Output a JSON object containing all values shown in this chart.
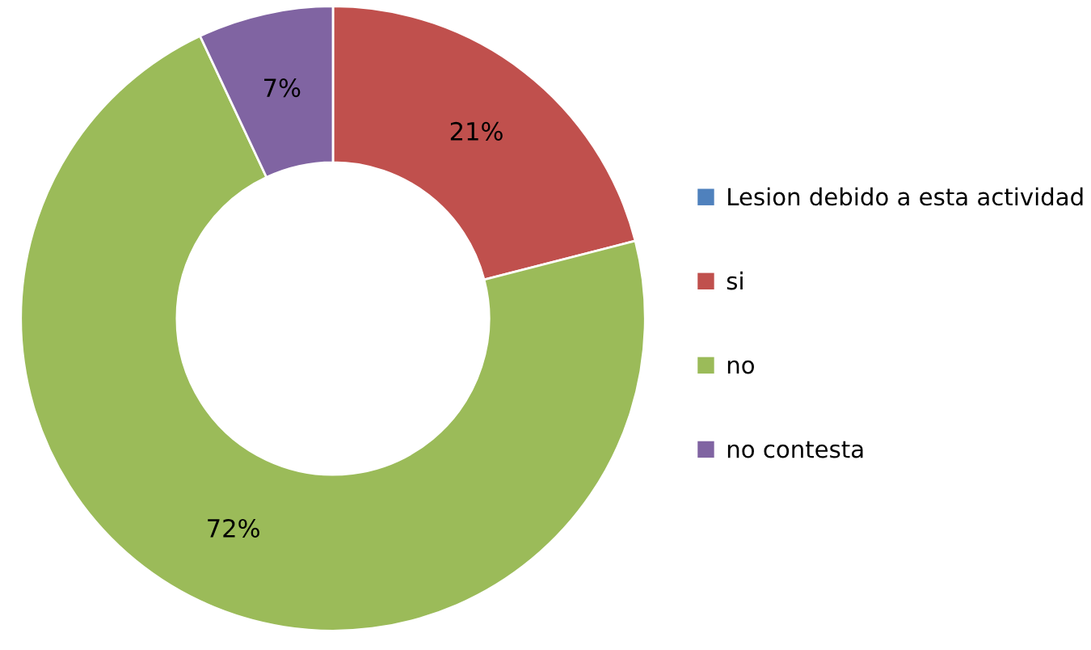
{
  "chart_data": {
    "type": "donut",
    "categories": [
      "Lesion debido a esta actividad",
      "si",
      "no",
      "no contesta"
    ],
    "values": [
      0,
      21,
      72,
      7
    ],
    "colors": [
      "#4f81bd",
      "#c0504d",
      "#9bbb59",
      "#8064a2"
    ],
    "value_labels": [
      null,
      "21%",
      "72%",
      "7%"
    ],
    "legend": "right"
  }
}
